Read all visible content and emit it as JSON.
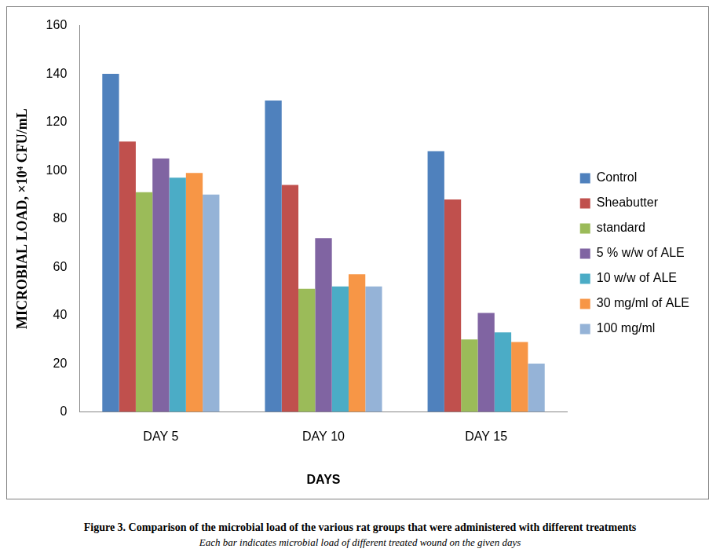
{
  "chart_data": {
    "type": "bar",
    "title": "Figure 3. Comparison of the microbial load of the various rat groups that were administered with different treatments",
    "subtitle": "Each bar indicates microbial load of different treated wound on the given days",
    "x_label": "DAYS",
    "y_label": "MICROBIAL LOAD, ×10⁴ CFU/mL",
    "categories": [
      "DAY 5",
      "DAY 10",
      "DAY 15"
    ],
    "series": [
      {
        "name": "Control",
        "color": "#4F81BD",
        "values": [
          140,
          129,
          108
        ]
      },
      {
        "name": "Sheabutter",
        "color": "#C0504D",
        "values": [
          112,
          94,
          88
        ]
      },
      {
        "name": "standard",
        "color": "#9BBB59",
        "values": [
          91,
          51,
          30
        ]
      },
      {
        "name": "5 % w/w of ALE",
        "color": "#8064A2",
        "values": [
          105,
          72,
          41
        ]
      },
      {
        "name": "10 w/w of ALE",
        "color": "#4BACC6",
        "values": [
          97,
          52,
          33
        ]
      },
      {
        "name": "30 mg/ml of ALE",
        "color": "#F79646",
        "values": [
          99,
          57,
          29
        ]
      },
      {
        "name": "100 mg/ml",
        "color": "#95B3D7",
        "values": [
          90,
          52,
          20
        ]
      }
    ],
    "ylim": [
      0,
      160
    ],
    "yticks": [
      0,
      20,
      40,
      60,
      80,
      100,
      120,
      140,
      160
    ],
    "grid": false,
    "legend": "right"
  }
}
